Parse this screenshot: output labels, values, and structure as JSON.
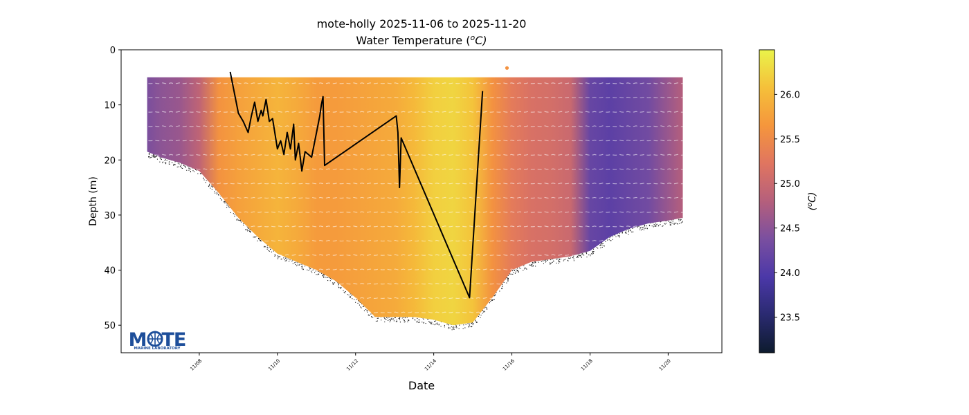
{
  "chart_data": {
    "type": "scatter",
    "title": "mote-holly 2025-11-06 to 2025-11-20",
    "subtitle_text": "Water Temperature (",
    "subtitle_unit": "o",
    "subtitle_tail": "C)",
    "xlabel": "Date",
    "ylabel": "Depth (m)",
    "xlim": [
      "2025-11-06T00:00",
      "2025-11-21T09:00"
    ],
    "ylim": [
      55,
      0
    ],
    "y_inverted": true,
    "yticks": [
      0,
      10,
      20,
      30,
      40,
      50
    ],
    "xticks": [
      "2025-11-08",
      "2025-11-10",
      "2025-11-12",
      "2025-11-14",
      "2025-11-16",
      "2025-11-18",
      "2025-11-20"
    ],
    "xtick_labels": [
      "11/08",
      "11/10",
      "11/12",
      "11/14",
      "11/16",
      "11/18",
      "11/20"
    ],
    "grid": false,
    "colorbar": {
      "label_prefix": "(",
      "label_unit": "o",
      "label_tail": "C)",
      "range": [
        23.1,
        26.5
      ],
      "ticks": [
        23.5,
        24.0,
        24.5,
        25.0,
        25.5,
        26.0
      ],
      "tick_labels": [
        "23.5",
        "24.0",
        "24.5",
        "25.0",
        "25.5",
        "26.0"
      ],
      "colormap": [
        "#0d1b2e",
        "#2a2a70",
        "#4b38a8",
        "#7a4fa0",
        "#b55f7c",
        "#e07560",
        "#f5963c",
        "#f5c03a",
        "#eaf34a"
      ]
    },
    "temperature_profile": {
      "dates": [
        "2025-11-06T12:00",
        "2025-11-07T00:00",
        "2025-11-07T12:00",
        "2025-11-08T00:00",
        "2025-11-08T12:00",
        "2025-11-09T00:00",
        "2025-11-09T12:00",
        "2025-11-10T00:00",
        "2025-11-10T12:00",
        "2025-11-11T00:00",
        "2025-11-11T12:00",
        "2025-11-12T00:00",
        "2025-11-12T12:00",
        "2025-11-13T00:00",
        "2025-11-13T12:00",
        "2025-11-14T00:00",
        "2025-11-14T12:00",
        "2025-11-15T00:00",
        "2025-11-15T12:00",
        "2025-11-16T00:00",
        "2025-11-16T12:00",
        "2025-11-17T00:00",
        "2025-11-17T12:00",
        "2025-11-18T00:00",
        "2025-11-18T12:00",
        "2025-11-19T00:00",
        "2025-11-19T12:00",
        "2025-11-20T00:00",
        "2025-11-20T09:00"
      ],
      "temperature": [
        24.3,
        24.5,
        24.6,
        24.9,
        25.6,
        25.75,
        25.85,
        25.95,
        25.85,
        25.7,
        25.7,
        25.75,
        25.8,
        25.85,
        26.0,
        26.2,
        26.25,
        26.1,
        25.6,
        25.3,
        25.15,
        25.1,
        25.0,
        24.2,
        24.1,
        24.2,
        24.3,
        24.6,
        24.8
      ]
    },
    "data_top_depth": 5,
    "outlier_point": {
      "date": "2025-11-15T21:00",
      "depth": 3.3,
      "temperature": 25.6
    },
    "bottom_depth": {
      "dates": [
        "2025-11-06T16:00",
        "2025-11-07T00:00",
        "2025-11-07T12:00",
        "2025-11-08T00:00",
        "2025-11-08T12:00",
        "2025-11-09T00:00",
        "2025-11-09T12:00",
        "2025-11-10T00:00",
        "2025-11-10T12:00",
        "2025-11-11T00:00",
        "2025-11-11T12:00",
        "2025-11-12T00:00",
        "2025-11-12T12:00",
        "2025-11-13T00:00",
        "2025-11-13T12:00",
        "2025-11-14T00:00",
        "2025-11-14T12:00",
        "2025-11-15T00:00",
        "2025-11-15T12:00",
        "2025-11-16T00:00",
        "2025-11-16T12:00",
        "2025-11-17T00:00",
        "2025-11-17T12:00",
        "2025-11-18T00:00",
        "2025-11-18T12:00",
        "2025-11-19T00:00",
        "2025-11-19T12:00",
        "2025-11-20T00:00",
        "2025-11-20T09:00"
      ],
      "depth": [
        18.5,
        19.5,
        20.5,
        22,
        26,
        30.5,
        34,
        37,
        38.5,
        40,
        42,
        45,
        48.5,
        48.5,
        48.5,
        49,
        50,
        49.5,
        45,
        40,
        38.5,
        38,
        37.5,
        36.5,
        34,
        32.5,
        31.5,
        31,
        30.5
      ]
    },
    "track_line": {
      "dates": [
        "2025-11-08T19:00",
        "2025-11-08T21:00",
        "2025-11-09T00:00",
        "2025-11-09T03:00",
        "2025-11-09T06:00",
        "2025-11-09T08:00",
        "2025-11-09T10:00",
        "2025-11-09T12:00",
        "2025-11-09T14:00",
        "2025-11-09T15:00",
        "2025-11-09T17:00",
        "2025-11-09T19:00",
        "2025-11-09T21:00",
        "2025-11-10T00:00",
        "2025-11-10T02:00",
        "2025-11-10T04:00",
        "2025-11-10T06:00",
        "2025-11-10T08:00",
        "2025-11-10T10:00",
        "2025-11-10T11:00",
        "2025-11-10T13:00",
        "2025-11-10T15:00",
        "2025-11-10T17:00",
        "2025-11-10T21:00",
        "2025-11-11T00:00",
        "2025-11-11T02:00",
        "2025-11-11T03:00",
        "2025-11-11T04:00",
        "2025-11-11T05:00",
        "2025-11-13T01:00",
        "2025-11-13T02:00",
        "2025-11-13T03:00",
        "2025-11-13T04:00",
        "2025-11-14T22:00",
        "2025-11-15T06:00"
      ],
      "depth": [
        4,
        7,
        11.5,
        13,
        15,
        12,
        9.5,
        13,
        11,
        12,
        9,
        13,
        12.5,
        18,
        16.5,
        19,
        15,
        18,
        13.5,
        20,
        17,
        22,
        18.5,
        19.5,
        15,
        12,
        10,
        8.5,
        21,
        12,
        15,
        25,
        16,
        45,
        7.5
      ]
    },
    "logo_text": "MOTE",
    "logo_subtext": "MARINE LABORATORY"
  }
}
